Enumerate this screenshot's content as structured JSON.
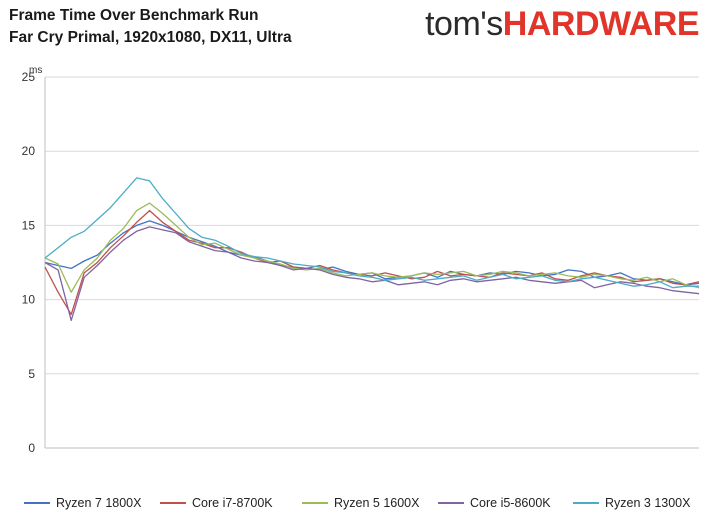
{
  "header": {
    "title": "Frame Time Over Benchmark Run",
    "subtitle": "Far Cry Primal, 1920x1080, DX11, Ultra",
    "logo_part1": "tom's",
    "logo_part2": "HARDWARE"
  },
  "chart_data": {
    "type": "line",
    "title": "Frame Time Over Benchmark Run",
    "subtitle": "Far Cry Primal, 1920x1080, DX11, Ultra",
    "ylabel": "ms",
    "xlabel": "",
    "ylim": [
      0,
      25
    ],
    "yticks": [
      "0",
      "5",
      "10",
      "15",
      "20",
      "25"
    ],
    "yticks_values": [
      0,
      5,
      10,
      15,
      20,
      25
    ],
    "grid": "horizontal",
    "legend": "bottom",
    "x": [
      0,
      0.02,
      0.04,
      0.06,
      0.08,
      0.1,
      0.12,
      0.14,
      0.16,
      0.18,
      0.2,
      0.22,
      0.24,
      0.26,
      0.28,
      0.3,
      0.32,
      0.34,
      0.36,
      0.38,
      0.4,
      0.42,
      0.44,
      0.46,
      0.48,
      0.5,
      0.52,
      0.54,
      0.56,
      0.58,
      0.6,
      0.62,
      0.64,
      0.66,
      0.68,
      0.7,
      0.72,
      0.74,
      0.76,
      0.78,
      0.8,
      0.82,
      0.84,
      0.86,
      0.88,
      0.9,
      0.92,
      0.94,
      0.96,
      0.98,
      1.0
    ],
    "series": [
      {
        "name": "Ryzen 7 1800X",
        "color": "#4472c4",
        "values": [
          12.5,
          12.3,
          12.1,
          12.6,
          13.0,
          13.8,
          14.5,
          15.0,
          15.3,
          15.0,
          14.6,
          14.2,
          13.9,
          13.6,
          13.2,
          13.0,
          12.9,
          12.6,
          12.3,
          12.2,
          12.1,
          12.0,
          12.2,
          11.9,
          11.7,
          11.8,
          11.4,
          11.5,
          11.6,
          11.8,
          11.5,
          11.9,
          11.7,
          11.6,
          11.8,
          11.7,
          11.9,
          11.8,
          11.6,
          11.7,
          12.0,
          11.9,
          11.5,
          11.6,
          11.8,
          11.4,
          11.3,
          11.4,
          11.2,
          11.0,
          11.1
        ]
      },
      {
        "name": "Core i7-8700K",
        "color": "#c0504d",
        "values": [
          12.2,
          10.5,
          9.0,
          11.8,
          12.5,
          13.5,
          14.3,
          15.2,
          16.0,
          15.2,
          14.6,
          14.0,
          13.8,
          13.5,
          13.5,
          13.2,
          12.8,
          12.5,
          12.6,
          12.2,
          12.1,
          12.3,
          12.0,
          11.8,
          11.7,
          11.6,
          11.8,
          11.6,
          11.4,
          11.5,
          11.9,
          11.6,
          11.7,
          11.6,
          11.5,
          11.8,
          11.7,
          11.6,
          11.8,
          11.4,
          11.3,
          11.6,
          11.8,
          11.6,
          11.5,
          11.2,
          11.3,
          11.4,
          11.1,
          11.0,
          11.2
        ]
      },
      {
        "name": "Ryzen 5 1600X",
        "color": "#9bbb59",
        "values": [
          12.8,
          12.4,
          10.5,
          12.0,
          12.8,
          14.0,
          14.8,
          16.0,
          16.5,
          15.8,
          15.0,
          14.2,
          13.7,
          13.8,
          13.4,
          13.0,
          12.8,
          12.6,
          12.4,
          12.1,
          12.0,
          12.1,
          11.8,
          11.6,
          11.7,
          11.8,
          11.6,
          11.5,
          11.6,
          11.8,
          11.7,
          11.8,
          11.9,
          11.6,
          11.7,
          11.9,
          11.8,
          11.6,
          11.7,
          11.8,
          11.6,
          11.5,
          11.7,
          11.6,
          11.4,
          11.3,
          11.5,
          11.2,
          11.4,
          11.0,
          10.8
        ]
      },
      {
        "name": "Core i5-8600K",
        "color": "#8064a2",
        "values": [
          12.5,
          12.0,
          8.6,
          11.5,
          12.3,
          13.2,
          14.0,
          14.6,
          14.9,
          14.7,
          14.5,
          13.9,
          13.6,
          13.3,
          13.2,
          12.8,
          12.6,
          12.5,
          12.3,
          12.0,
          12.1,
          12.0,
          11.7,
          11.5,
          11.4,
          11.2,
          11.3,
          11.0,
          11.1,
          11.2,
          11.0,
          11.3,
          11.4,
          11.2,
          11.3,
          11.4,
          11.5,
          11.3,
          11.2,
          11.1,
          11.2,
          11.3,
          10.8,
          11.0,
          11.2,
          11.1,
          10.9,
          10.8,
          10.6,
          10.5,
          10.4
        ]
      },
      {
        "name": "Ryzen 3 1300X",
        "color": "#4bacc6",
        "values": [
          12.8,
          13.5,
          14.2,
          14.6,
          15.4,
          16.2,
          17.2,
          18.2,
          18.0,
          16.8,
          15.8,
          14.8,
          14.2,
          14.0,
          13.6,
          13.1,
          12.9,
          12.8,
          12.6,
          12.4,
          12.3,
          12.2,
          11.9,
          11.8,
          11.6,
          11.5,
          11.3,
          11.4,
          11.5,
          11.3,
          11.4,
          11.5,
          11.6,
          11.3,
          11.5,
          11.7,
          11.4,
          11.5,
          11.6,
          11.3,
          11.2,
          11.4,
          11.5,
          11.3,
          11.1,
          10.9,
          11.0,
          11.2,
          10.8,
          10.9,
          10.9
        ]
      }
    ]
  }
}
